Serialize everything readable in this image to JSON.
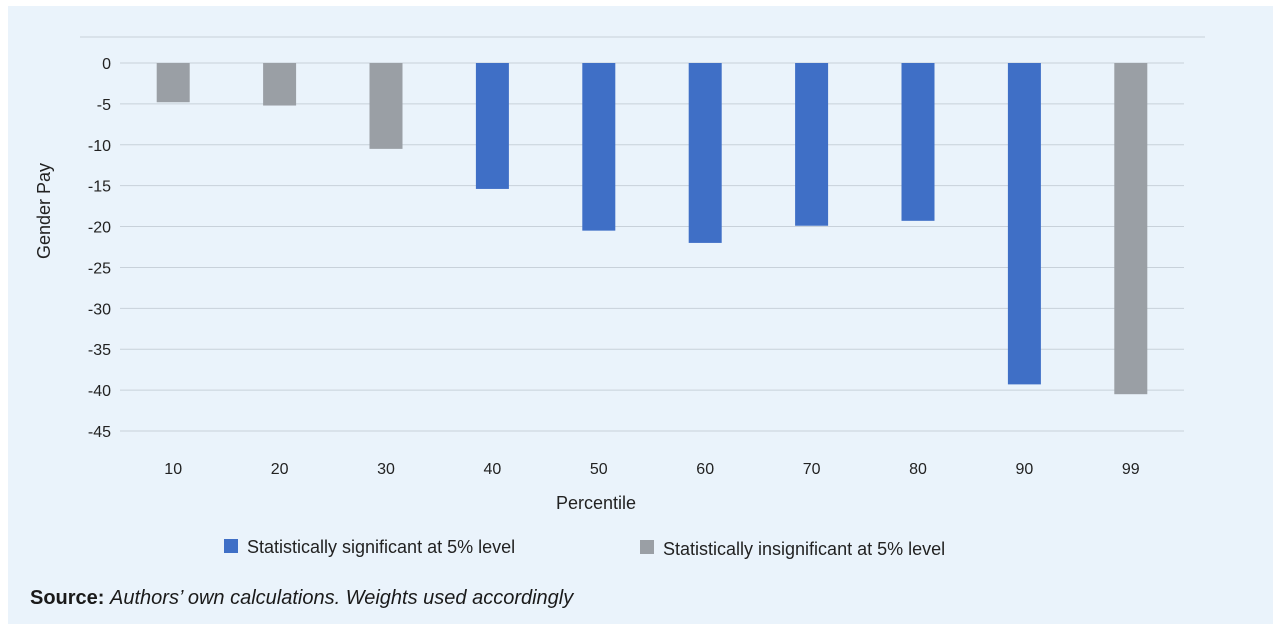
{
  "chart_data": {
    "type": "bar",
    "categories": [
      "10",
      "20",
      "30",
      "40",
      "50",
      "60",
      "70",
      "80",
      "90",
      "99"
    ],
    "values": [
      -4.8,
      -5.2,
      -10.5,
      -15.4,
      -20.5,
      -22.0,
      -19.9,
      -19.3,
      -39.3,
      -40.5
    ],
    "significance": [
      "insignificant",
      "insignificant",
      "insignificant",
      "significant",
      "significant",
      "significant",
      "significant",
      "significant",
      "significant",
      "insignificant"
    ],
    "ylim": [
      -45,
      0
    ],
    "yticks": [
      0,
      -5,
      -10,
      -15,
      -20,
      -25,
      -30,
      -35,
      -40,
      -45
    ],
    "xlabel": "Percentile",
    "ylabel": "Gender Pay",
    "grid": true,
    "legend_position": "bottom",
    "legend": [
      {
        "key": "significant",
        "label": "Statistically significant at 5% level",
        "color": "#3f6fc6"
      },
      {
        "key": "insignificant",
        "label": "Statistically insignificant at 5% level",
        "color": "#9a9fa5"
      }
    ]
  },
  "source": {
    "label": "Source:",
    "text": "Authors’ own calculations. Weights used accordingly"
  }
}
